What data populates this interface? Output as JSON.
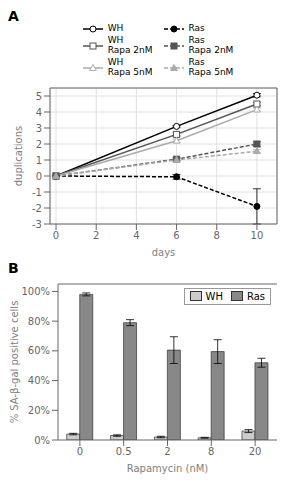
{
  "chart_data": [
    {
      "type": "line",
      "title": "A",
      "xlabel": "days",
      "ylabel": "duplications",
      "xlim": [
        -0.3,
        11
      ],
      "ylim": [
        -3,
        5.5
      ],
      "xticks": [
        0,
        2,
        4,
        6,
        8,
        10
      ],
      "yticks": [
        -3,
        -2,
        -1,
        0,
        1,
        2,
        3,
        4,
        5
      ],
      "grid": true,
      "legend": "top",
      "series": [
        {
          "name": "WH",
          "x": [
            0,
            6,
            10
          ],
          "values": [
            0,
            3.1,
            5.05
          ],
          "errors": [
            0,
            0.05,
            0.1
          ],
          "color": "#000000",
          "line_style": "solid",
          "marker": "open_circle"
        },
        {
          "name": "WH\nRapa 2nM",
          "x": [
            0,
            6,
            10
          ],
          "values": [
            0,
            2.6,
            4.5
          ],
          "errors": [
            0,
            0.1,
            0.1
          ],
          "color": "#555555",
          "line_style": "solid",
          "marker": "open_square"
        },
        {
          "name": "WH\nRapa 5nM",
          "x": [
            0,
            6,
            10
          ],
          "values": [
            0,
            2.2,
            4.15
          ],
          "errors": [
            0,
            0.1,
            0.1
          ],
          "color": "#aaaaaa",
          "line_style": "solid",
          "marker": "open_triangle"
        },
        {
          "name": "Ras",
          "x": [
            0,
            6,
            10
          ],
          "values": [
            0,
            -0.05,
            -1.9
          ],
          "errors": [
            0,
            0.15,
            1.1
          ],
          "color": "#000000",
          "line_style": "dashed",
          "marker": "circle"
        },
        {
          "name": "Ras\nRapa 2nM",
          "x": [
            0,
            6,
            10
          ],
          "values": [
            0,
            1.05,
            2.0
          ],
          "errors": [
            0,
            0.1,
            0.15
          ],
          "color": "#555555",
          "line_style": "dashed",
          "marker": "square"
        },
        {
          "name": "Ras\nRapa 5nM",
          "x": [
            0,
            6,
            10
          ],
          "values": [
            0,
            1.0,
            1.55
          ],
          "errors": [
            0,
            0.1,
            0.1
          ],
          "color": "#aaaaaa",
          "line_style": "dashed",
          "marker": "triangle"
        }
      ]
    },
    {
      "type": "bar",
      "title": "B",
      "xlabel": "Rapamycin (nM)",
      "ylabel": "% SA-β-gal positive cells",
      "categories": [
        "0",
        "0.5",
        "2",
        "8",
        "20"
      ],
      "ylim": [
        0,
        1.05
      ],
      "yticks": [
        {
          "value": 0,
          "label": "0%"
        },
        {
          "value": 0.2,
          "label": "20%"
        },
        {
          "value": 0.4,
          "label": "40%"
        },
        {
          "value": 0.6,
          "label": "60%"
        },
        {
          "value": 0.8,
          "label": "80%"
        },
        {
          "value": 1.0,
          "label": "100%"
        }
      ],
      "grid": false,
      "legend": "upper right",
      "series": [
        {
          "name": "WH",
          "values": [
            0.04,
            0.03,
            0.02,
            0.015,
            0.06
          ],
          "errors": [
            0.005,
            0.005,
            0.005,
            0.003,
            0.01
          ],
          "color": "#cccccc"
        },
        {
          "name": "Ras",
          "values": [
            0.98,
            0.79,
            0.605,
            0.595,
            0.52
          ],
          "errors": [
            0.01,
            0.02,
            0.09,
            0.08,
            0.03
          ],
          "color": "#888888"
        }
      ]
    }
  ]
}
